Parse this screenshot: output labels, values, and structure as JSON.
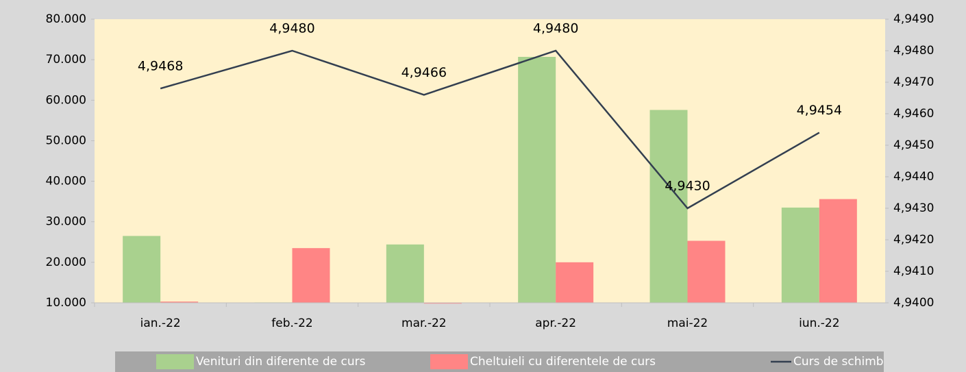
{
  "chart_data": {
    "type": "bar-line",
    "categories": [
      "ian.-22",
      "feb.-22",
      "mar.-22",
      "apr.-22",
      "mai-22",
      "iun.-22"
    ],
    "series": [
      {
        "name": "Venituri din diferente de curs",
        "color": "#a9d18e",
        "type": "bar",
        "values": [
          26500,
          10100,
          24400,
          70700,
          57600,
          33500
        ]
      },
      {
        "name": "Cheltuieli cu diferentele de curs",
        "color": "#ff8585",
        "type": "bar",
        "values": [
          10300,
          23500,
          9800,
          20000,
          25300,
          35600
        ]
      },
      {
        "name": "Curs de schimb",
        "color": "#333f50",
        "type": "line",
        "axis": "y2",
        "values": [
          4.9468,
          4.948,
          4.9466,
          4.948,
          4.943,
          4.9454
        ],
        "value_labels": [
          "4,9468",
          "4,9480",
          "4,9466",
          "4,9480",
          "4,9430",
          "4,9454"
        ]
      }
    ],
    "ylim": [
      10000,
      80000
    ],
    "yticks": [
      {
        "value": 10000,
        "label": "10.000"
      },
      {
        "value": 20000,
        "label": "20.000"
      },
      {
        "value": 30000,
        "label": "30.000"
      },
      {
        "value": 40000,
        "label": "40.000"
      },
      {
        "value": 50000,
        "label": "50.000"
      },
      {
        "value": 60000,
        "label": "60.000"
      },
      {
        "value": 70000,
        "label": "70.000"
      },
      {
        "value": 80000,
        "label": "80.000"
      }
    ],
    "y2lim": [
      4.94,
      4.949
    ],
    "y2ticks": [
      {
        "value": 4.94,
        "label": "4,9400"
      },
      {
        "value": 4.941,
        "label": "4,9410"
      },
      {
        "value": 4.942,
        "label": "4,9420"
      },
      {
        "value": 4.943,
        "label": "4,9430"
      },
      {
        "value": 4.944,
        "label": "4,9440"
      },
      {
        "value": 4.945,
        "label": "4,9450"
      },
      {
        "value": 4.946,
        "label": "4,9460"
      },
      {
        "value": 4.947,
        "label": "4,9470"
      },
      {
        "value": 4.948,
        "label": "4,9480"
      },
      {
        "value": 4.949,
        "label": "4,9490"
      }
    ],
    "legend": "bottom"
  }
}
